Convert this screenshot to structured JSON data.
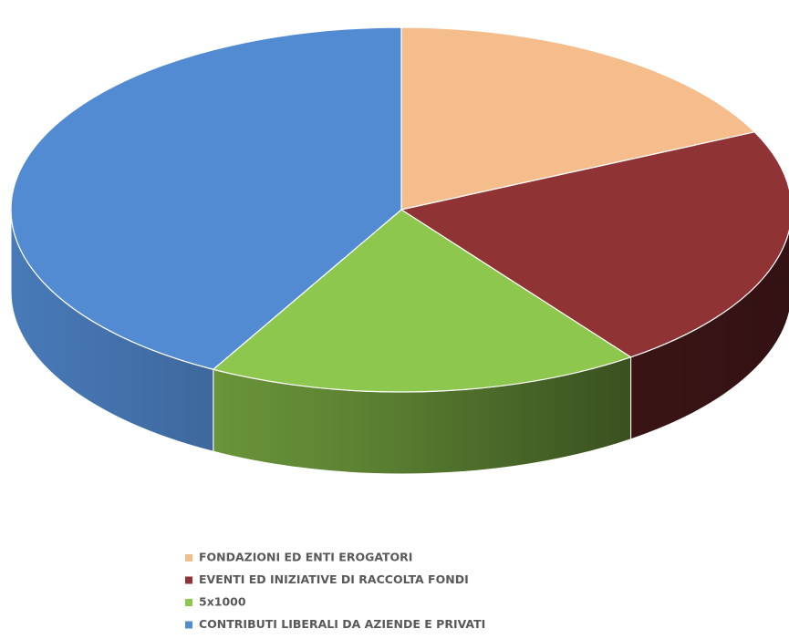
{
  "chart_data": {
    "type": "pie",
    "categories": [
      "FONDAZIONI ED ENTI EROGATORI",
      "EVENTI ED INIZIATIVE DI RACCOLTA FONDI",
      "5x1000",
      "CONTRIBUTI LIBERALI DA AZIENDE E PRIVATI"
    ],
    "values": [
      18,
      22,
      18,
      42
    ],
    "colors": [
      "#f5bd8c",
      "#903335",
      "#8dc74d",
      "#528bd2"
    ],
    "legend": "bottom"
  }
}
